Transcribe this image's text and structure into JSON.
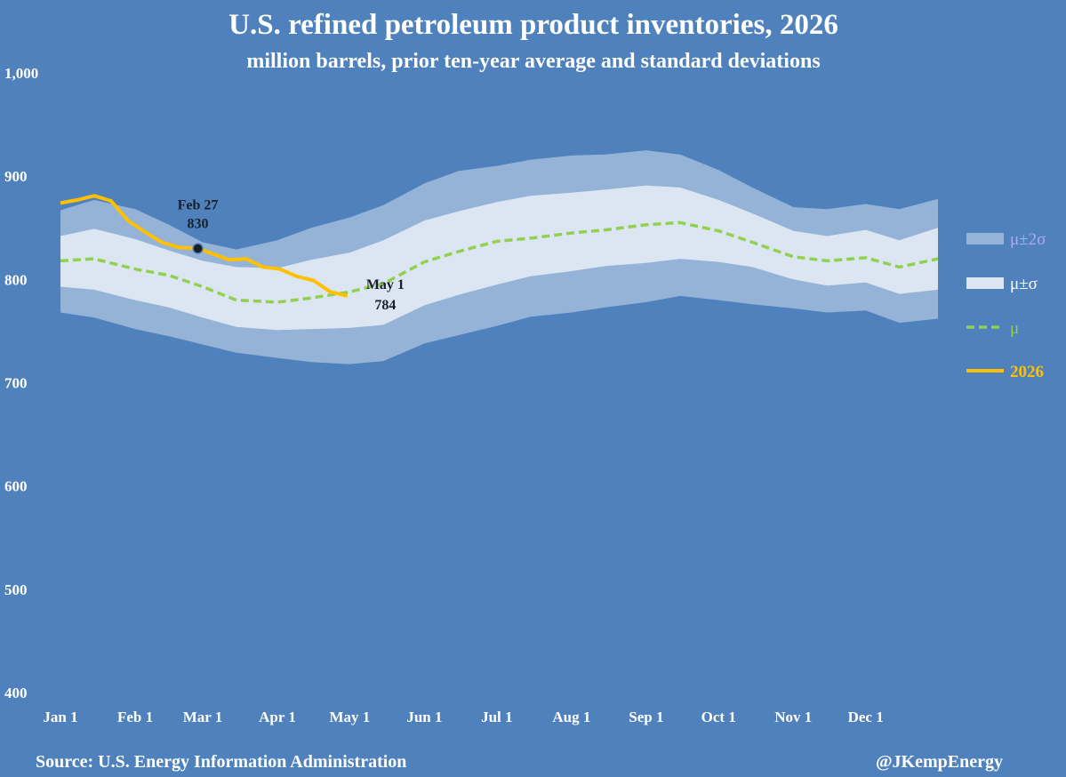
{
  "colors": {
    "background": "#4f81bd",
    "band2": "#95b3d7",
    "band1": "#dce6f2",
    "mean": "#92d050",
    "current": "#ffc000",
    "annotation": "#1b1f2a",
    "legend_band2_text": "#b4a7f0",
    "legend_band1_text": "#ffffff",
    "legend_mean_text": "#92d050",
    "legend_current_text": "#ffc000"
  },
  "chart_data": {
    "type": "area",
    "title": "U.S. refined petroleum product inventories, 2026",
    "subtitle": "million barrels, prior ten-year average and standard deviations",
    "ylim": [
      400,
      1000
    ],
    "yticks": [
      400,
      500,
      600,
      700,
      800,
      900,
      1000
    ],
    "ytick_labels": [
      "400",
      "500",
      "600",
      "700",
      "800",
      "900",
      "1,000"
    ],
    "xlim": [
      "Jan 1",
      "Dec 31"
    ],
    "xtick_labels": [
      "Jan 1",
      "Feb 1",
      "Mar 1",
      "Apr 1",
      "May 1",
      "Jun 1",
      "Jul 1",
      "Aug 1",
      "Sep 1",
      "Oct 1",
      "Nov 1",
      "Dec 1"
    ],
    "grid": false,
    "legend_position": "right",
    "x": [
      "Jan 1",
      "Jan 15",
      "Feb 1",
      "Feb 15",
      "Mar 1",
      "Mar 15",
      "Apr 1",
      "Apr 15",
      "May 1",
      "May 15",
      "Jun 1",
      "Jun 15",
      "Jul 1",
      "Jul 15",
      "Aug 1",
      "Aug 15",
      "Sep 1",
      "Sep 15",
      "Oct 1",
      "Oct 15",
      "Nov 1",
      "Nov 15",
      "Dec 1",
      "Dec 15",
      "Dec 31"
    ],
    "series": [
      {
        "name": "μ±2σ",
        "lower": [
          768,
          763,
          752,
          745,
          737,
          729,
          724,
          720,
          718,
          721,
          738,
          746,
          755,
          764,
          768,
          773,
          778,
          784,
          780,
          776,
          772,
          768,
          770,
          758,
          762
        ],
        "upper": [
          867,
          877,
          868,
          853,
          836,
          829,
          838,
          850,
          860,
          872,
          893,
          905,
          910,
          916,
          920,
          921,
          925,
          921,
          906,
          889,
          870,
          868,
          873,
          868,
          878
        ]
      },
      {
        "name": "μ±σ",
        "lower": [
          793,
          790,
          780,
          773,
          763,
          754,
          751,
          752,
          753,
          756,
          775,
          785,
          795,
          803,
          808,
          813,
          816,
          820,
          817,
          812,
          800,
          794,
          797,
          786,
          790
        ],
        "upper": [
          842,
          849,
          839,
          828,
          818,
          812,
          811,
          819,
          826,
          838,
          857,
          866,
          875,
          881,
          884,
          887,
          891,
          889,
          877,
          864,
          847,
          842,
          848,
          838,
          850
        ]
      },
      {
        "name": "μ",
        "values": [
          818,
          820,
          810,
          804,
          793,
          780,
          778,
          782,
          788,
          796,
          817,
          827,
          837,
          840,
          845,
          848,
          853,
          855,
          847,
          836,
          822,
          818,
          821,
          812,
          820
        ]
      },
      {
        "name": "2026",
        "x": [
          "Jan 1",
          "Jan 8",
          "Jan 15",
          "Jan 22",
          "Jan 29",
          "Feb 5",
          "Feb 12",
          "Feb 19",
          "Feb 27",
          "Mar 5",
          "Mar 12",
          "Mar 19",
          "Mar 26",
          "Apr 2",
          "Apr 9",
          "Apr 16",
          "Apr 23",
          "Apr 30"
        ],
        "values": [
          874,
          877,
          881,
          876,
          857,
          846,
          836,
          831,
          830,
          825,
          819,
          820,
          812,
          810,
          803,
          799,
          788,
          784
        ]
      }
    ],
    "annotations": [
      {
        "date": "Feb 27",
        "label": "Feb 27",
        "value": 830
      },
      {
        "date": "May 1",
        "label": "May 1",
        "value": 784
      }
    ]
  },
  "footer": {
    "source": "Source: U.S. Energy Information Administration",
    "handle": "@JKempEnergy"
  }
}
